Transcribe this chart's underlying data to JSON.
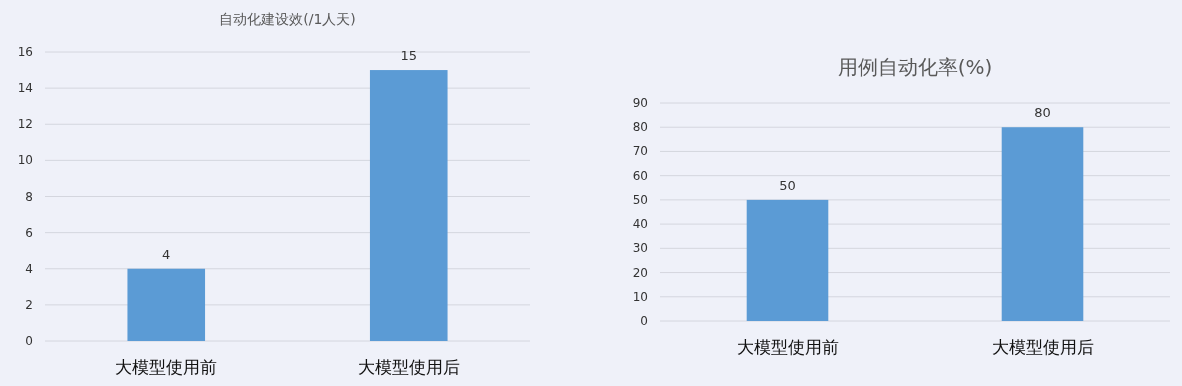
{
  "chart_data": [
    {
      "type": "bar",
      "title": "自动化建设效(/1人天)",
      "categories": [
        "大模型使用前",
        "大模型使用后"
      ],
      "values": [
        4,
        15
      ],
      "color": "#5b9bd5",
      "ylim": [
        0,
        16
      ],
      "yticks": [
        0,
        2,
        4,
        6,
        8,
        10,
        12,
        14,
        16
      ],
      "grid": "y",
      "data_labels": true
    },
    {
      "type": "bar",
      "title": "用例自动化率(%)",
      "categories": [
        "大模型使用前",
        "大模型使用后"
      ],
      "values": [
        50,
        80
      ],
      "color": "#5b9bd5",
      "ylim": [
        0,
        90
      ],
      "yticks": [
        0,
        10,
        20,
        30,
        40,
        50,
        60,
        70,
        80,
        90
      ],
      "grid": "y",
      "data_labels": true
    }
  ]
}
